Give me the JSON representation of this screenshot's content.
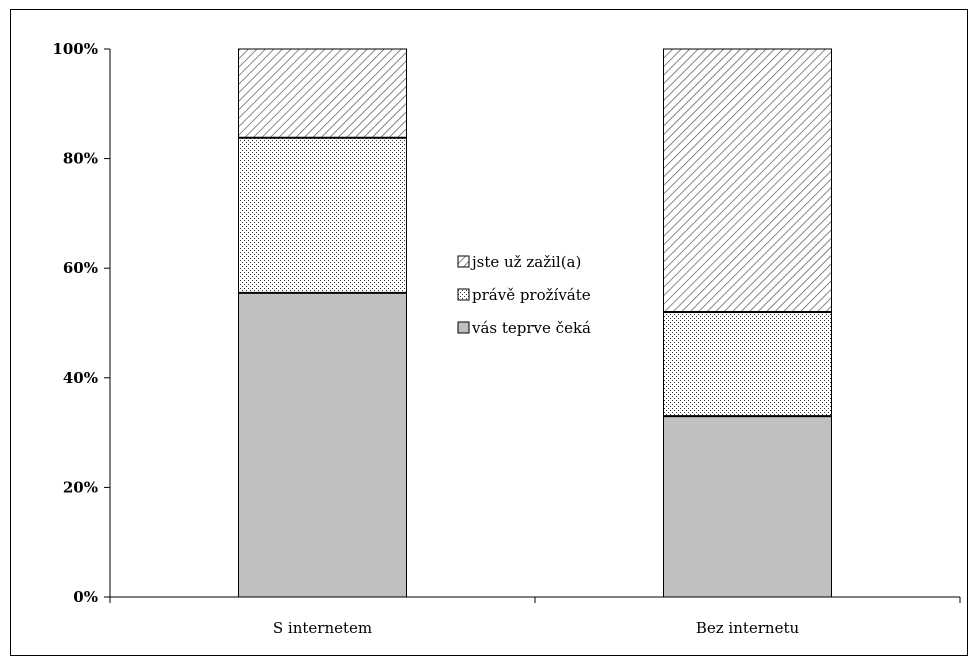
{
  "chart_data": {
    "type": "bar",
    "stacked": true,
    "percent": true,
    "categories": [
      "S internetem",
      "Bez internetu"
    ],
    "series": [
      {
        "name": "vás teprve čeká",
        "values": [
          55.5,
          33
        ],
        "pattern": "solid-gray",
        "color": "#c0c0c0"
      },
      {
        "name": "právě prožíváte",
        "values": [
          28.3,
          19
        ],
        "pattern": "dots",
        "color": "#ffffff"
      },
      {
        "name": "jste už zažil(a)",
        "values": [
          16.2,
          48
        ],
        "pattern": "diagonal-hatch",
        "color": "#ffffff"
      }
    ],
    "legend_order": [
      "jste už zažil(a)",
      "právě prožíváte",
      "vás teprve čeká"
    ],
    "legend_position": "center",
    "y_ticks": [
      "0%",
      "20%",
      "40%",
      "60%",
      "80%",
      "100%"
    ],
    "ylim": [
      0,
      100
    ],
    "grid": false
  }
}
